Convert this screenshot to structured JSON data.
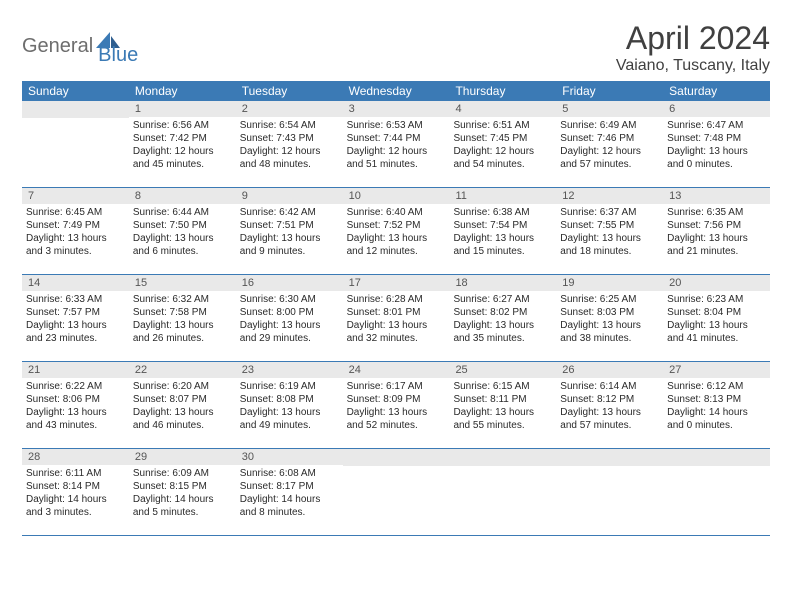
{
  "brand": {
    "part1": "General",
    "part2": "Blue"
  },
  "title": "April 2024",
  "location": "Vaiano, Tuscany, Italy",
  "day_names": [
    "Sunday",
    "Monday",
    "Tuesday",
    "Wednesday",
    "Thursday",
    "Friday",
    "Saturday"
  ],
  "colors": {
    "header_bg": "#3b7ab5",
    "header_text": "#ffffff",
    "daynum_bg": "#e9e9e9",
    "border": "#3b7ab5",
    "text": "#404040"
  },
  "first_weekday_offset": 1,
  "days": [
    {
      "n": 1,
      "sunrise": "6:56 AM",
      "sunset": "7:42 PM",
      "daylight": "Daylight: 12 hours and 45 minutes."
    },
    {
      "n": 2,
      "sunrise": "6:54 AM",
      "sunset": "7:43 PM",
      "daylight": "Daylight: 12 hours and 48 minutes."
    },
    {
      "n": 3,
      "sunrise": "6:53 AM",
      "sunset": "7:44 PM",
      "daylight": "Daylight: 12 hours and 51 minutes."
    },
    {
      "n": 4,
      "sunrise": "6:51 AM",
      "sunset": "7:45 PM",
      "daylight": "Daylight: 12 hours and 54 minutes."
    },
    {
      "n": 5,
      "sunrise": "6:49 AM",
      "sunset": "7:46 PM",
      "daylight": "Daylight: 12 hours and 57 minutes."
    },
    {
      "n": 6,
      "sunrise": "6:47 AM",
      "sunset": "7:48 PM",
      "daylight": "Daylight: 13 hours and 0 minutes."
    },
    {
      "n": 7,
      "sunrise": "6:45 AM",
      "sunset": "7:49 PM",
      "daylight": "Daylight: 13 hours and 3 minutes."
    },
    {
      "n": 8,
      "sunrise": "6:44 AM",
      "sunset": "7:50 PM",
      "daylight": "Daylight: 13 hours and 6 minutes."
    },
    {
      "n": 9,
      "sunrise": "6:42 AM",
      "sunset": "7:51 PM",
      "daylight": "Daylight: 13 hours and 9 minutes."
    },
    {
      "n": 10,
      "sunrise": "6:40 AM",
      "sunset": "7:52 PM",
      "daylight": "Daylight: 13 hours and 12 minutes."
    },
    {
      "n": 11,
      "sunrise": "6:38 AM",
      "sunset": "7:54 PM",
      "daylight": "Daylight: 13 hours and 15 minutes."
    },
    {
      "n": 12,
      "sunrise": "6:37 AM",
      "sunset": "7:55 PM",
      "daylight": "Daylight: 13 hours and 18 minutes."
    },
    {
      "n": 13,
      "sunrise": "6:35 AM",
      "sunset": "7:56 PM",
      "daylight": "Daylight: 13 hours and 21 minutes."
    },
    {
      "n": 14,
      "sunrise": "6:33 AM",
      "sunset": "7:57 PM",
      "daylight": "Daylight: 13 hours and 23 minutes."
    },
    {
      "n": 15,
      "sunrise": "6:32 AM",
      "sunset": "7:58 PM",
      "daylight": "Daylight: 13 hours and 26 minutes."
    },
    {
      "n": 16,
      "sunrise": "6:30 AM",
      "sunset": "8:00 PM",
      "daylight": "Daylight: 13 hours and 29 minutes."
    },
    {
      "n": 17,
      "sunrise": "6:28 AM",
      "sunset": "8:01 PM",
      "daylight": "Daylight: 13 hours and 32 minutes."
    },
    {
      "n": 18,
      "sunrise": "6:27 AM",
      "sunset": "8:02 PM",
      "daylight": "Daylight: 13 hours and 35 minutes."
    },
    {
      "n": 19,
      "sunrise": "6:25 AM",
      "sunset": "8:03 PM",
      "daylight": "Daylight: 13 hours and 38 minutes."
    },
    {
      "n": 20,
      "sunrise": "6:23 AM",
      "sunset": "8:04 PM",
      "daylight": "Daylight: 13 hours and 41 minutes."
    },
    {
      "n": 21,
      "sunrise": "6:22 AM",
      "sunset": "8:06 PM",
      "daylight": "Daylight: 13 hours and 43 minutes."
    },
    {
      "n": 22,
      "sunrise": "6:20 AM",
      "sunset": "8:07 PM",
      "daylight": "Daylight: 13 hours and 46 minutes."
    },
    {
      "n": 23,
      "sunrise": "6:19 AM",
      "sunset": "8:08 PM",
      "daylight": "Daylight: 13 hours and 49 minutes."
    },
    {
      "n": 24,
      "sunrise": "6:17 AM",
      "sunset": "8:09 PM",
      "daylight": "Daylight: 13 hours and 52 minutes."
    },
    {
      "n": 25,
      "sunrise": "6:15 AM",
      "sunset": "8:11 PM",
      "daylight": "Daylight: 13 hours and 55 minutes."
    },
    {
      "n": 26,
      "sunrise": "6:14 AM",
      "sunset": "8:12 PM",
      "daylight": "Daylight: 13 hours and 57 minutes."
    },
    {
      "n": 27,
      "sunrise": "6:12 AM",
      "sunset": "8:13 PM",
      "daylight": "Daylight: 14 hours and 0 minutes."
    },
    {
      "n": 28,
      "sunrise": "6:11 AM",
      "sunset": "8:14 PM",
      "daylight": "Daylight: 14 hours and 3 minutes."
    },
    {
      "n": 29,
      "sunrise": "6:09 AM",
      "sunset": "8:15 PM",
      "daylight": "Daylight: 14 hours and 5 minutes."
    },
    {
      "n": 30,
      "sunrise": "6:08 AM",
      "sunset": "8:17 PM",
      "daylight": "Daylight: 14 hours and 8 minutes."
    }
  ]
}
